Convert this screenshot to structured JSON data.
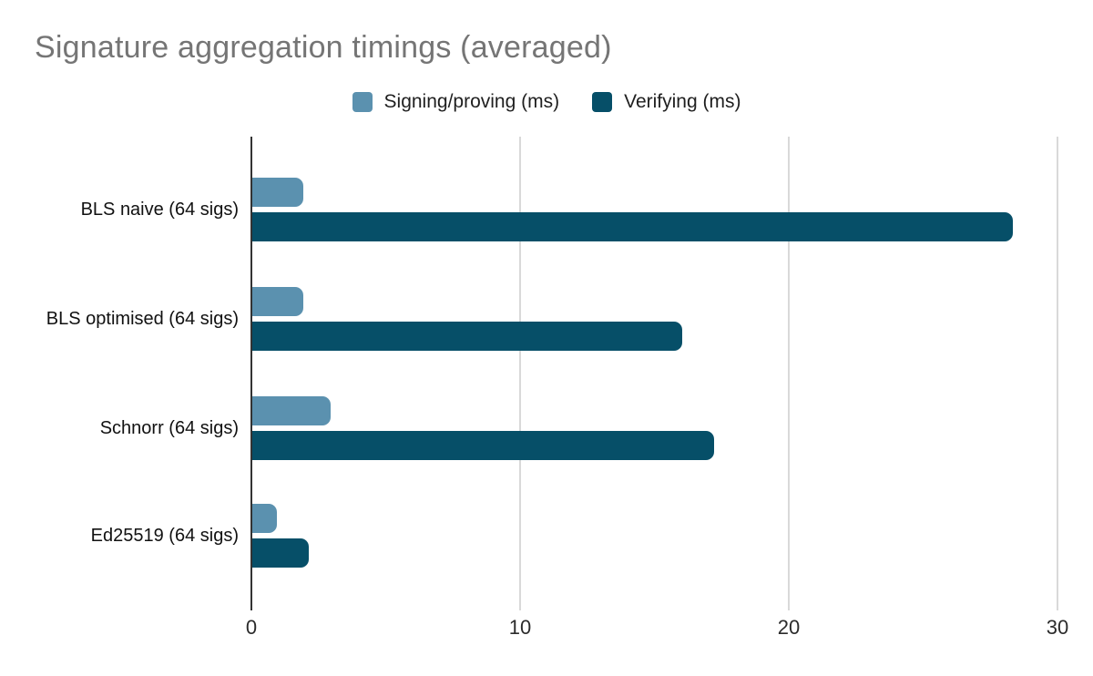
{
  "chart_data": {
    "type": "bar",
    "orientation": "horizontal",
    "title": "Signature aggregation timings (averaged)",
    "categories": [
      "BLS naive (64 sigs)",
      "BLS optimised (64 sigs)",
      "Schnorr (64 sigs)",
      "Ed25519 (64 sigs)"
    ],
    "series": [
      {
        "name": "Signing/proving (ms)",
        "color": "#5b91af",
        "values": [
          1.9,
          1.9,
          2.9,
          0.9
        ]
      },
      {
        "name": "Verifying (ms)",
        "color": "#064f68",
        "values": [
          28.3,
          16.0,
          17.2,
          2.1
        ]
      }
    ],
    "xlabel": "",
    "ylabel": "",
    "x_ticks": [
      0,
      10,
      20,
      30
    ],
    "xlim": [
      0,
      30
    ],
    "grid": true,
    "legend_position": "top-center",
    "title_color": "#757575",
    "grid_color": "#d9d9d9",
    "axis_color": "#333333",
    "label_color": "#111111"
  }
}
